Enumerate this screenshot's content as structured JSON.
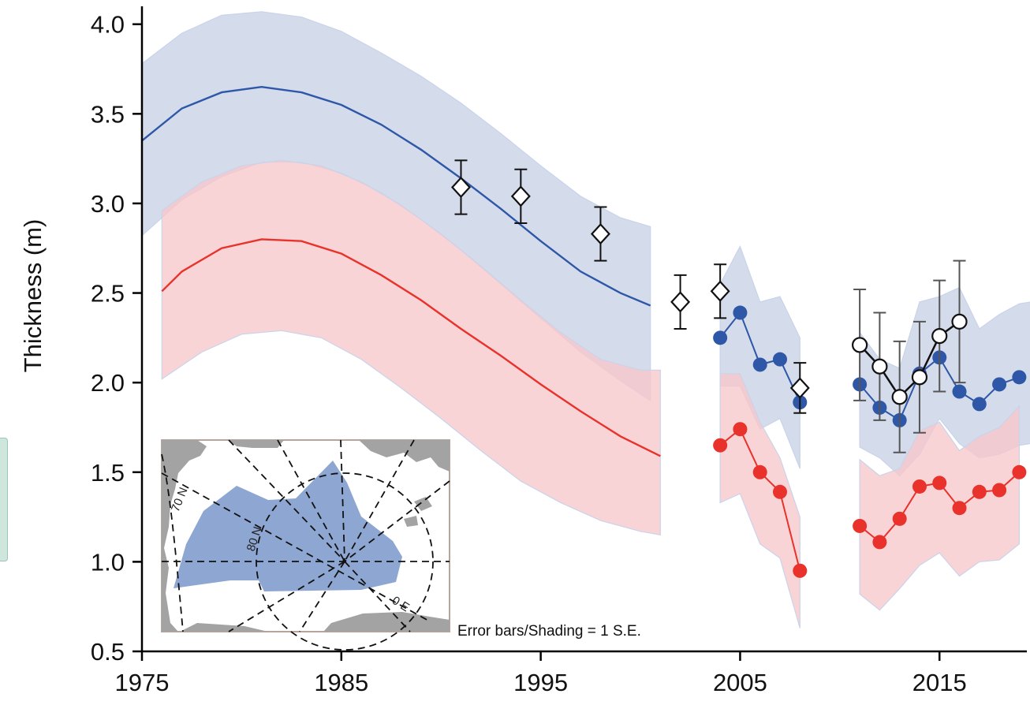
{
  "chart_data": {
    "type": "line",
    "title": "",
    "ylabel": "Thickness (m)",
    "xlabel": "",
    "xlim": [
      1975,
      2019.5
    ],
    "ylim": [
      0.5,
      4.1
    ],
    "x_ticks": [
      1975,
      1985,
      1995,
      2005,
      2015
    ],
    "y_ticks": [
      0.5,
      1.0,
      1.5,
      2.0,
      2.5,
      3.0,
      3.5,
      4.0
    ],
    "y_tick_labels": [
      "0.5",
      "1.0",
      "1.5",
      "2.0",
      "2.5",
      "3.0",
      "3.5",
      "4.0"
    ],
    "grid": false,
    "annotation": "Error bars/Shading = 1 S.E.",
    "colors": {
      "blue": "#2e57a8",
      "red": "#e8322b",
      "blue_band": "#d2d9ea",
      "red_band": "#f7c8ca",
      "overlap_band": "#dfb7c0",
      "map_sea_ice": "#8ea6d2",
      "map_land": "#a3a3a3"
    },
    "bands": [
      {
        "color": "blue",
        "x": [
          1975,
          1977,
          1979,
          1981,
          1983,
          1985,
          1987,
          1989,
          1991,
          1993,
          1995,
          1997,
          1999,
          2000.5
        ],
        "upper": [
          3.78,
          3.95,
          4.05,
          4.07,
          4.04,
          3.96,
          3.84,
          3.71,
          3.56,
          3.39,
          3.21,
          3.04,
          2.92,
          2.87
        ],
        "lower": [
          2.82,
          3.02,
          3.15,
          3.23,
          3.23,
          3.17,
          3.06,
          2.91,
          2.74,
          2.55,
          2.36,
          2.17,
          2.01,
          1.9
        ]
      },
      {
        "color": "red",
        "x": [
          1976,
          1978,
          1980,
          1982,
          1984,
          1986,
          1988,
          1990,
          1992,
          1994,
          1996,
          1998,
          2000,
          2001
        ],
        "upper": [
          2.96,
          3.12,
          3.21,
          3.24,
          3.21,
          3.12,
          2.99,
          2.83,
          2.65,
          2.46,
          2.28,
          2.13,
          2.07,
          2.07
        ],
        "lower": [
          2.02,
          2.17,
          2.27,
          2.29,
          2.25,
          2.13,
          1.97,
          1.8,
          1.62,
          1.45,
          1.33,
          1.23,
          1.17,
          1.15
        ]
      },
      {
        "color": "blue",
        "x": [
          2004,
          2005,
          2006,
          2007,
          2008
        ],
        "upper": [
          2.55,
          2.76,
          2.45,
          2.48,
          2.25
        ],
        "lower": [
          1.98,
          1.98,
          1.74,
          1.8,
          1.52
        ]
      },
      {
        "color": "red",
        "x": [
          2004,
          2005,
          2006,
          2007,
          2008
        ],
        "upper": [
          2.05,
          2.05,
          1.78,
          1.58,
          1.25
        ],
        "lower": [
          1.33,
          1.38,
          1.1,
          1.02,
          0.63
        ]
      },
      {
        "color": "blue",
        "x": [
          2011,
          2012,
          2013,
          2014,
          2015,
          2016,
          2017,
          2018,
          2019,
          2019.6
        ],
        "upper": [
          2.28,
          2.13,
          2.08,
          2.45,
          2.48,
          2.53,
          2.3,
          2.38,
          2.44,
          2.45
        ],
        "lower": [
          1.64,
          1.58,
          1.48,
          1.6,
          1.8,
          1.66,
          1.58,
          1.6,
          1.65,
          1.66
        ],
        "comment": ""
      },
      {
        "color": "red",
        "x": [
          2011,
          2012,
          2013,
          2014,
          2015,
          2016,
          2017,
          2018,
          2019
        ],
        "upper": [
          1.57,
          1.48,
          1.52,
          1.73,
          1.78,
          1.62,
          1.7,
          1.75,
          1.87
        ],
        "lower": [
          0.82,
          0.73,
          0.85,
          0.98,
          1.05,
          0.92,
          1.0,
          1.01,
          1.1
        ]
      }
    ],
    "series": [
      {
        "color": "blue",
        "style": "line",
        "x": [
          1975,
          1977,
          1979,
          1981,
          1983,
          1985,
          1987,
          1989,
          1991,
          1993,
          1995,
          1997,
          1999,
          2000.5
        ],
        "values": [
          3.35,
          3.53,
          3.62,
          3.65,
          3.62,
          3.55,
          3.44,
          3.3,
          3.14,
          2.97,
          2.79,
          2.62,
          2.5,
          2.43
        ]
      },
      {
        "color": "red",
        "style": "line",
        "x": [
          1976,
          1977,
          1979,
          1981,
          1983,
          1985,
          1987,
          1989,
          1991,
          1993,
          1995,
          1997,
          1999,
          2001
        ],
        "values": [
          2.51,
          2.62,
          2.75,
          2.8,
          2.79,
          2.72,
          2.6,
          2.46,
          2.3,
          2.15,
          1.99,
          1.84,
          1.7,
          1.59
        ]
      },
      {
        "color": "blue",
        "style": "dots",
        "segments": [
          {
            "x": [
              2004,
              2005,
              2006,
              2007,
              2008
            ],
            "values": [
              2.25,
              2.39,
              2.1,
              2.13,
              1.89
            ]
          },
          {
            "x": [
              2011,
              2012,
              2013,
              2014,
              2015,
              2016,
              2017,
              2018,
              2019
            ],
            "values": [
              1.99,
              1.86,
              1.79,
              2.05,
              2.14,
              1.95,
              1.88,
              1.99,
              2.03
            ]
          }
        ]
      },
      {
        "color": "red",
        "style": "dots",
        "segments": [
          {
            "x": [
              2004,
              2005,
              2006,
              2007,
              2008
            ],
            "values": [
              1.65,
              1.74,
              1.5,
              1.39,
              0.95
            ]
          },
          {
            "x": [
              2011,
              2012,
              2013,
              2014,
              2015,
              2016,
              2017,
              2018,
              2019
            ],
            "values": [
              1.2,
              1.11,
              1.24,
              1.42,
              1.44,
              1.3,
              1.39,
              1.4,
              1.5
            ]
          }
        ]
      },
      {
        "color": "black",
        "style": "diamonds",
        "x": [
          1991,
          1994,
          1998,
          2002,
          2004,
          2008
        ],
        "values": [
          3.09,
          3.04,
          2.83,
          2.45,
          2.51,
          1.97
        ],
        "err": [
          0.15,
          0.15,
          0.15,
          0.15,
          0.15,
          0.14
        ]
      },
      {
        "color": "black",
        "style": "open-circles",
        "x": [
          2011,
          2012,
          2013,
          2014,
          2015,
          2016
        ],
        "values": [
          2.21,
          2.09,
          1.92,
          2.03,
          2.26,
          2.34
        ],
        "err": [
          0.31,
          0.3,
          0.31,
          0.31,
          0.31,
          0.34
        ]
      }
    ],
    "inset_map": {
      "labels": [
        "70 N",
        "80 N",
        "0 E"
      ]
    }
  }
}
